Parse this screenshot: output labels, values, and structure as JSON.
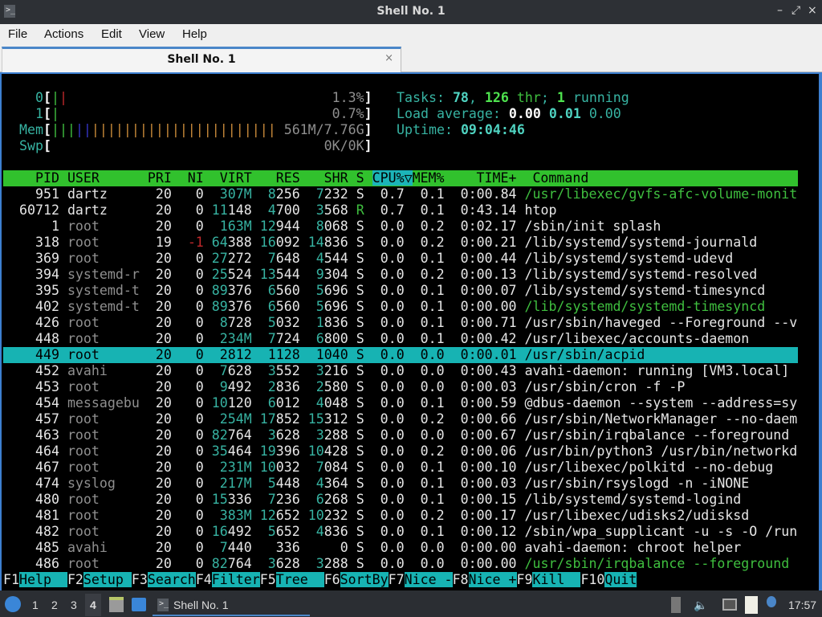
{
  "window": {
    "title": "Shell No. 1",
    "minimize": "–",
    "maximize": "⤢",
    "close": "×"
  },
  "menu": [
    "File",
    "Actions",
    "Edit",
    "View",
    "Help"
  ],
  "tab": {
    "label": "Shell No. 1",
    "close": "×"
  },
  "meters": {
    "cpu": [
      {
        "label": "0",
        "value": "1.3%",
        "bars": [
          {
            "color": "green",
            "n": 1
          },
          {
            "color": "red",
            "n": 1
          }
        ]
      },
      {
        "label": "1",
        "value": "0.7%",
        "bars": [
          {
            "color": "green",
            "n": 1
          }
        ]
      }
    ],
    "mem": {
      "label": "Mem",
      "value": "561M/7.76G",
      "bars": [
        {
          "color": "green",
          "n": 3
        },
        {
          "color": "blue",
          "n": 2
        },
        {
          "color": "orange",
          "n": 23
        }
      ]
    },
    "swp": {
      "label": "Swp",
      "value": "0K/0K"
    }
  },
  "stats": {
    "tasks_label": "Tasks:",
    "tasks": "78",
    "threads": "126",
    "thr_label": "thr",
    "running": "1",
    "running_label": "running",
    "load_label": "Load average:",
    "load": [
      "0.00",
      "0.01",
      "0.00"
    ],
    "uptime_label": "Uptime:",
    "uptime": "09:04:46"
  },
  "columns": [
    "PID",
    "USER",
    "PRI",
    "NI",
    "VIRT",
    "RES",
    "SHR",
    "S",
    "CPU%▽",
    "MEM%",
    "TIME+",
    "Command"
  ],
  "sort_column": "CPU%▽",
  "processes": [
    {
      "pid": "951",
      "user": "dartz",
      "pri": "20",
      "ni": "0",
      "virt": "307M",
      "res": "8256",
      "shr": "7232",
      "s": "S",
      "cpu": "0.7",
      "mem": "0.1",
      "time": "0:00.84",
      "command": "/usr/libexec/gvfs-afc-volume-monit",
      "thread": true
    },
    {
      "pid": "60712",
      "user": "dartz",
      "pri": "20",
      "ni": "0",
      "virt": "11148",
      "res": "4700",
      "shr": "3568",
      "s": "R",
      "cpu": "0.7",
      "mem": "0.1",
      "time": "0:43.14",
      "command": "htop"
    },
    {
      "pid": "1",
      "user": "root",
      "pri": "20",
      "ni": "0",
      "virt": "163M",
      "res": "12944",
      "shr": "8068",
      "s": "S",
      "cpu": "0.0",
      "mem": "0.2",
      "time": "0:02.17",
      "command": "/sbin/init splash"
    },
    {
      "pid": "318",
      "user": "root",
      "pri": "19",
      "ni": "-1",
      "virt": "64388",
      "res": "16092",
      "shr": "14836",
      "s": "S",
      "cpu": "0.0",
      "mem": "0.2",
      "time": "0:00.21",
      "command": "/lib/systemd/systemd-journald"
    },
    {
      "pid": "369",
      "user": "root",
      "pri": "20",
      "ni": "0",
      "virt": "27272",
      "res": "7648",
      "shr": "4544",
      "s": "S",
      "cpu": "0.0",
      "mem": "0.1",
      "time": "0:00.44",
      "command": "/lib/systemd/systemd-udevd"
    },
    {
      "pid": "394",
      "user": "systemd-r",
      "pri": "20",
      "ni": "0",
      "virt": "25524",
      "res": "13544",
      "shr": "9304",
      "s": "S",
      "cpu": "0.0",
      "mem": "0.2",
      "time": "0:00.13",
      "command": "/lib/systemd/systemd-resolved"
    },
    {
      "pid": "395",
      "user": "systemd-t",
      "pri": "20",
      "ni": "0",
      "virt": "89376",
      "res": "6560",
      "shr": "5696",
      "s": "S",
      "cpu": "0.0",
      "mem": "0.1",
      "time": "0:00.07",
      "command": "/lib/systemd/systemd-timesyncd"
    },
    {
      "pid": "402",
      "user": "systemd-t",
      "pri": "20",
      "ni": "0",
      "virt": "89376",
      "res": "6560",
      "shr": "5696",
      "s": "S",
      "cpu": "0.0",
      "mem": "0.1",
      "time": "0:00.00",
      "command": "/lib/systemd/systemd-timesyncd",
      "thread": true
    },
    {
      "pid": "426",
      "user": "root",
      "pri": "20",
      "ni": "0",
      "virt": "8728",
      "res": "5032",
      "shr": "1836",
      "s": "S",
      "cpu": "0.0",
      "mem": "0.1",
      "time": "0:00.71",
      "command": "/usr/sbin/haveged --Foreground --v"
    },
    {
      "pid": "448",
      "user": "root",
      "pri": "20",
      "ni": "0",
      "virt": "234M",
      "res": "7724",
      "shr": "6800",
      "s": "S",
      "cpu": "0.0",
      "mem": "0.1",
      "time": "0:00.42",
      "command": "/usr/libexec/accounts-daemon"
    },
    {
      "pid": "449",
      "user": "root",
      "pri": "20",
      "ni": "0",
      "virt": "2812",
      "res": "1128",
      "shr": "1040",
      "s": "S",
      "cpu": "0.0",
      "mem": "0.0",
      "time": "0:00.01",
      "command": "/usr/sbin/acpid",
      "selected": true
    },
    {
      "pid": "452",
      "user": "avahi",
      "pri": "20",
      "ni": "0",
      "virt": "7628",
      "res": "3552",
      "shr": "3216",
      "s": "S",
      "cpu": "0.0",
      "mem": "0.0",
      "time": "0:00.43",
      "command": "avahi-daemon: running [VM3.local]"
    },
    {
      "pid": "453",
      "user": "root",
      "pri": "20",
      "ni": "0",
      "virt": "9492",
      "res": "2836",
      "shr": "2580",
      "s": "S",
      "cpu": "0.0",
      "mem": "0.0",
      "time": "0:00.03",
      "command": "/usr/sbin/cron -f -P"
    },
    {
      "pid": "454",
      "user": "messagebu",
      "pri": "20",
      "ni": "0",
      "virt": "10120",
      "res": "6012",
      "shr": "4048",
      "s": "S",
      "cpu": "0.0",
      "mem": "0.1",
      "time": "0:00.59",
      "command": "@dbus-daemon --system --address=sy"
    },
    {
      "pid": "457",
      "user": "root",
      "pri": "20",
      "ni": "0",
      "virt": "254M",
      "res": "17852",
      "shr": "15312",
      "s": "S",
      "cpu": "0.0",
      "mem": "0.2",
      "time": "0:00.66",
      "command": "/usr/sbin/NetworkManager --no-daem"
    },
    {
      "pid": "463",
      "user": "root",
      "pri": "20",
      "ni": "0",
      "virt": "82764",
      "res": "3628",
      "shr": "3288",
      "s": "S",
      "cpu": "0.0",
      "mem": "0.0",
      "time": "0:00.67",
      "command": "/usr/sbin/irqbalance --foreground"
    },
    {
      "pid": "464",
      "user": "root",
      "pri": "20",
      "ni": "0",
      "virt": "35464",
      "res": "19396",
      "shr": "10428",
      "s": "S",
      "cpu": "0.0",
      "mem": "0.2",
      "time": "0:00.06",
      "command": "/usr/bin/python3 /usr/bin/networkd"
    },
    {
      "pid": "467",
      "user": "root",
      "pri": "20",
      "ni": "0",
      "virt": "231M",
      "res": "10032",
      "shr": "7084",
      "s": "S",
      "cpu": "0.0",
      "mem": "0.1",
      "time": "0:00.10",
      "command": "/usr/libexec/polkitd --no-debug"
    },
    {
      "pid": "474",
      "user": "syslog",
      "pri": "20",
      "ni": "0",
      "virt": "217M",
      "res": "5448",
      "shr": "4364",
      "s": "S",
      "cpu": "0.0",
      "mem": "0.1",
      "time": "0:00.03",
      "command": "/usr/sbin/rsyslogd -n -iNONE"
    },
    {
      "pid": "480",
      "user": "root",
      "pri": "20",
      "ni": "0",
      "virt": "15336",
      "res": "7236",
      "shr": "6268",
      "s": "S",
      "cpu": "0.0",
      "mem": "0.1",
      "time": "0:00.15",
      "command": "/lib/systemd/systemd-logind"
    },
    {
      "pid": "481",
      "user": "root",
      "pri": "20",
      "ni": "0",
      "virt": "383M",
      "res": "12652",
      "shr": "10232",
      "s": "S",
      "cpu": "0.0",
      "mem": "0.2",
      "time": "0:00.17",
      "command": "/usr/libexec/udisks2/udisksd"
    },
    {
      "pid": "482",
      "user": "root",
      "pri": "20",
      "ni": "0",
      "virt": "16492",
      "res": "5652",
      "shr": "4836",
      "s": "S",
      "cpu": "0.0",
      "mem": "0.1",
      "time": "0:00.12",
      "command": "/sbin/wpa_supplicant -u -s -O /run"
    },
    {
      "pid": "485",
      "user": "avahi",
      "pri": "20",
      "ni": "0",
      "virt": "7440",
      "res": "336",
      "shr": "0",
      "s": "S",
      "cpu": "0.0",
      "mem": "0.0",
      "time": "0:00.00",
      "command": "avahi-daemon: chroot helper"
    },
    {
      "pid": "486",
      "user": "root",
      "pri": "20",
      "ni": "0",
      "virt": "82764",
      "res": "3628",
      "shr": "3288",
      "s": "S",
      "cpu": "0.0",
      "mem": "0.0",
      "time": "0:00.00",
      "command": "/usr/sbin/irqbalance --foreground",
      "thread": true
    }
  ],
  "function_keys": [
    {
      "key": "F1",
      "label": "Help"
    },
    {
      "key": "F2",
      "label": "Setup"
    },
    {
      "key": "F3",
      "label": "Search"
    },
    {
      "key": "F4",
      "label": "Filter"
    },
    {
      "key": "F5",
      "label": "Tree"
    },
    {
      "key": "F6",
      "label": "SortBy"
    },
    {
      "key": "F7",
      "label": "Nice -"
    },
    {
      "key": "F8",
      "label": "Nice +"
    },
    {
      "key": "F9",
      "label": "Kill"
    },
    {
      "key": "F10",
      "label": "Quit"
    }
  ],
  "current_user": "dartz",
  "taskbar": {
    "workspaces": [
      "1",
      "2",
      "3",
      "4"
    ],
    "active_workspace": "4",
    "task": "Shell No. 1",
    "clock": "17:57"
  },
  "colors": {
    "header_bg": "#31c12d",
    "selection": "#17b3b3",
    "accent": "#4a86c8",
    "thread": "#3fbf3f"
  }
}
